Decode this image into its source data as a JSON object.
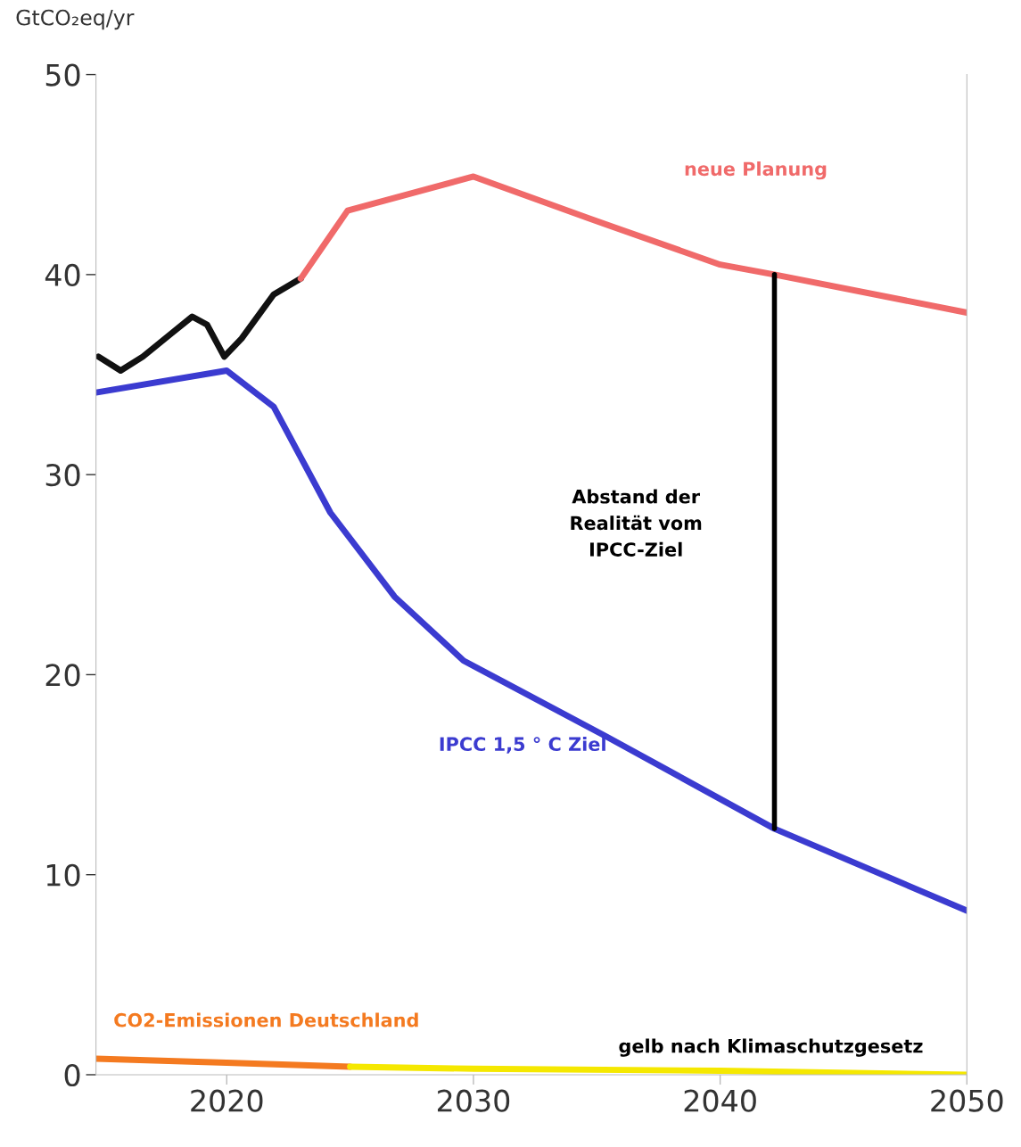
{
  "chart_data": {
    "type": "line",
    "ylabel": "GtCO₂eq/yr",
    "xlim": [
      2014.7,
      2050
    ],
    "xticks": [
      2020,
      2030,
      2040,
      2050
    ],
    "ylim": [
      0,
      50
    ],
    "yticks": [
      0,
      10,
      20,
      30,
      40,
      50
    ],
    "grid": false,
    "legend": false,
    "marker": "none",
    "line_style": "solid",
    "series": [
      {
        "color": "#111111",
        "x": [
          2014.8,
          2015.7,
          2016.6,
          2017.7,
          2018.6,
          2019.2,
          2019.9,
          2020.6,
          2021.9,
          2023.0
        ],
        "values": [
          35.9,
          35.2,
          35.9,
          37.0,
          37.9,
          37.5,
          35.9,
          36.8,
          39.0,
          39.8
        ]
      },
      {
        "name": "neue Planung",
        "color": "#f06a6a",
        "x": [
          2023.0,
          2024.9,
          2030.0,
          2034.7,
          2040.0,
          2042.2,
          2050.0
        ],
        "values": [
          39.8,
          43.2,
          44.9,
          42.8,
          40.5,
          40.0,
          38.1
        ]
      },
      {
        "name": "IPCC 1,5 ° C Ziel",
        "color": "#3b3bd0",
        "x": [
          2014.7,
          2020.0,
          2021.9,
          2024.2,
          2026.8,
          2029.6,
          2035.4,
          2042.2,
          2050.0
        ],
        "values": [
          34.1,
          35.2,
          33.4,
          28.1,
          23.9,
          20.7,
          16.9,
          12.3,
          8.2
        ]
      },
      {
        "name": "CO2-Emissionen Deutschland",
        "color": "#f47a20",
        "x": [
          2014.7,
          2020.0,
          2025.0
        ],
        "values": [
          0.8,
          0.6,
          0.4
        ]
      },
      {
        "name": "gelb nach Klimaschutzgesetz",
        "color": "#f5e800",
        "x": [
          2025.0,
          2030.0,
          2040.0,
          2050.0
        ],
        "values": [
          0.4,
          0.3,
          0.2,
          0.0
        ]
      },
      {
        "color": "#000000",
        "x": [
          2042.2,
          2042.2
        ],
        "values": [
          12.3,
          40.0
        ]
      }
    ],
    "annotations": [
      "Abstand der\nRealität vom\nIPCC-Ziel"
    ]
  }
}
